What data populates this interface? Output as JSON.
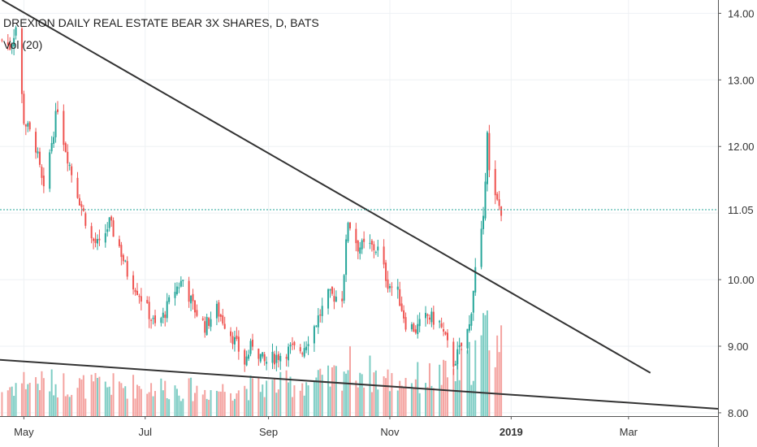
{
  "header": {
    "title": "DREXION DAILY REAL ESTATE BEAR 3X SHARES, D, BATS",
    "volume_label": "Vol (20)"
  },
  "colors": {
    "up": "#26a69a",
    "down": "#ef5350",
    "up_volume": "#7ecdc4",
    "down_volume": "#f4a3a0",
    "trendline": "#333333",
    "last_price_line": "#26a69a",
    "axis_text": "#333333"
  },
  "chart_data": {
    "type": "candlestick",
    "title": "DREXION DAILY REAL ESTATE BEAR 3X SHARES, D, BATS",
    "y_axis": {
      "ticks": [
        "14.00",
        "13.00",
        "12.00",
        "11.00",
        "10.00",
        "9.00",
        "8.00"
      ],
      "range": [
        7.95,
        14.2
      ],
      "last_price": 11.05,
      "last_price_label": "11.05"
    },
    "x_axis": {
      "ticks": [
        "May",
        "Jul",
        "Sep",
        "Nov",
        "2019",
        "Mar"
      ],
      "range": [
        "2018-04-19",
        "2019-04-15"
      ]
    },
    "trendlines": [
      {
        "start": [
          "2018-04-20",
          14.2
        ],
        "end": [
          "2019-03-12",
          8.6
        ]
      },
      {
        "start": [
          "2018-04-17",
          8.8
        ],
        "end": [
          "2019-04-15",
          8.06
        ]
      }
    ],
    "price_anchors": [
      [
        "2018-04-20",
        13.6
      ],
      [
        "2018-04-24",
        13.5
      ],
      [
        "2018-04-27",
        13.8
      ],
      [
        "2018-05-01",
        12.4
      ],
      [
        "2018-05-07",
        12.0
      ],
      [
        "2018-05-11",
        11.3
      ],
      [
        "2018-05-14",
        11.9
      ],
      [
        "2018-05-18",
        12.6
      ],
      [
        "2018-05-21",
        12.1
      ],
      [
        "2018-05-25",
        11.6
      ],
      [
        "2018-05-31",
        11.0
      ],
      [
        "2018-06-04",
        10.6
      ],
      [
        "2018-06-08",
        10.5
      ],
      [
        "2018-06-13",
        10.85
      ],
      [
        "2018-06-18",
        10.5
      ],
      [
        "2018-06-22",
        10.1
      ],
      [
        "2018-06-27",
        9.85
      ],
      [
        "2018-07-02",
        9.55
      ],
      [
        "2018-07-06",
        9.3
      ],
      [
        "2018-07-10",
        9.45
      ],
      [
        "2018-07-16",
        9.85
      ],
      [
        "2018-07-20",
        10.0
      ],
      [
        "2018-07-25",
        9.6
      ],
      [
        "2018-07-31",
        9.3
      ],
      [
        "2018-08-06",
        9.55
      ],
      [
        "2018-08-13",
        9.2
      ],
      [
        "2018-08-20",
        8.75
      ],
      [
        "2018-08-24",
        9.05
      ],
      [
        "2018-08-30",
        8.75
      ],
      [
        "2018-09-05",
        8.85
      ],
      [
        "2018-09-12",
        8.95
      ],
      [
        "2018-09-18",
        8.95
      ],
      [
        "2018-09-24",
        9.3
      ],
      [
        "2018-10-01",
        9.75
      ],
      [
        "2018-10-08",
        9.75
      ],
      [
        "2018-10-11",
        10.9
      ],
      [
        "2018-10-16",
        10.5
      ],
      [
        "2018-10-22",
        10.5
      ],
      [
        "2018-10-26",
        10.45
      ],
      [
        "2018-10-31",
        9.95
      ],
      [
        "2018-11-05",
        9.8
      ],
      [
        "2018-11-09",
        9.35
      ],
      [
        "2018-11-14",
        9.25
      ],
      [
        "2018-11-20",
        9.45
      ],
      [
        "2018-11-26",
        9.35
      ],
      [
        "2018-12-03",
        8.75
      ],
      [
        "2018-12-07",
        9.0
      ],
      [
        "2018-12-11",
        9.3
      ],
      [
        "2018-12-14",
        10.15
      ],
      [
        "2018-12-18",
        10.85
      ],
      [
        "2018-12-20",
        12.3
      ],
      [
        "2018-12-21",
        11.6
      ],
      [
        "2018-12-24",
        11.2
      ],
      [
        "2018-12-27",
        11.05
      ]
    ],
    "volume_anchors": [
      [
        "2018-04-20",
        0.25
      ],
      [
        "2018-05-01",
        0.35
      ],
      [
        "2018-06-01",
        0.3
      ],
      [
        "2018-07-01",
        0.3
      ],
      [
        "2018-08-01",
        0.25
      ],
      [
        "2018-09-01",
        0.3
      ],
      [
        "2018-10-01",
        0.35
      ],
      [
        "2018-10-11",
        0.5
      ],
      [
        "2018-11-01",
        0.35
      ],
      [
        "2018-12-01",
        0.4
      ],
      [
        "2018-12-12",
        0.55
      ],
      [
        "2018-12-20",
        0.85
      ],
      [
        "2018-12-27",
        0.7
      ]
    ],
    "legend": []
  }
}
